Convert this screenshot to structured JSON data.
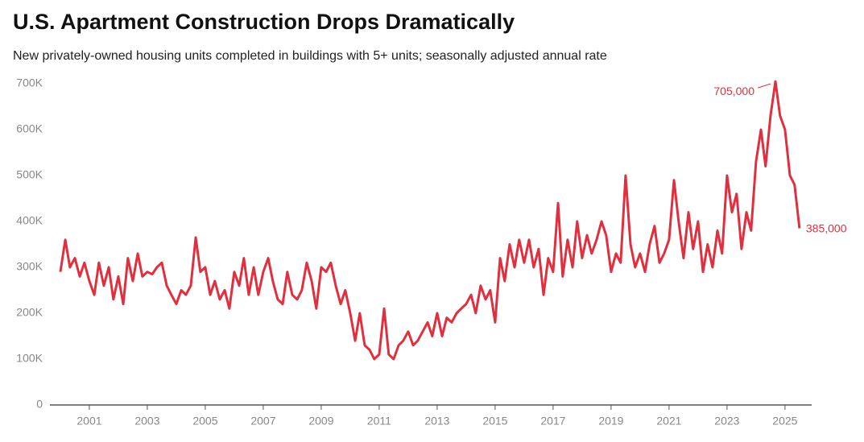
{
  "chart_data": {
    "type": "line",
    "title": "U.S. Apartment Construction Drops Dramatically",
    "subtitle": "New privately-owned housing units completed in buildings with 5+ units; seasonally adjusted annual rate",
    "x": [
      2000,
      2000.17,
      2000.33,
      2000.5,
      2000.67,
      2000.83,
      2001,
      2001.17,
      2001.33,
      2001.5,
      2001.67,
      2001.83,
      2002,
      2002.17,
      2002.33,
      2002.5,
      2002.67,
      2002.83,
      2003,
      2003.17,
      2003.33,
      2003.5,
      2003.67,
      2003.83,
      2004,
      2004.17,
      2004.33,
      2004.5,
      2004.67,
      2004.83,
      2005,
      2005.17,
      2005.33,
      2005.5,
      2005.67,
      2005.83,
      2006,
      2006.17,
      2006.33,
      2006.5,
      2006.67,
      2006.83,
      2007,
      2007.17,
      2007.33,
      2007.5,
      2007.67,
      2007.83,
      2008,
      2008.17,
      2008.33,
      2008.5,
      2008.67,
      2008.83,
      2009,
      2009.17,
      2009.33,
      2009.5,
      2009.67,
      2009.83,
      2010,
      2010.17,
      2010.33,
      2010.5,
      2010.67,
      2010.83,
      2011,
      2011.17,
      2011.33,
      2011.5,
      2011.67,
      2011.83,
      2012,
      2012.17,
      2012.33,
      2012.5,
      2012.67,
      2012.83,
      2013,
      2013.17,
      2013.33,
      2013.5,
      2013.67,
      2013.83,
      2014,
      2014.17,
      2014.33,
      2014.5,
      2014.67,
      2014.83,
      2015,
      2015.17,
      2015.33,
      2015.5,
      2015.67,
      2015.83,
      2016,
      2016.17,
      2016.33,
      2016.5,
      2016.67,
      2016.83,
      2017,
      2017.17,
      2017.33,
      2017.5,
      2017.67,
      2017.83,
      2018,
      2018.17,
      2018.33,
      2018.5,
      2018.67,
      2018.83,
      2019,
      2019.17,
      2019.33,
      2019.5,
      2019.67,
      2019.83,
      2020,
      2020.17,
      2020.33,
      2020.5,
      2020.67,
      2020.83,
      2021,
      2021.17,
      2021.33,
      2021.5,
      2021.67,
      2021.83,
      2022,
      2022.17,
      2022.33,
      2022.5,
      2022.67,
      2022.83,
      2023,
      2023.17,
      2023.33,
      2023.5,
      2023.67,
      2023.83,
      2024,
      2024.17,
      2024.33,
      2024.5,
      2024.67,
      2024.83,
      2025,
      2025.17,
      2025.33,
      2025.5
    ],
    "series": [
      {
        "color": "#e0303f",
        "values": [
          290,
          360,
          300,
          320,
          280,
          310,
          270,
          240,
          310,
          260,
          300,
          230,
          280,
          220,
          320,
          270,
          330,
          280,
          290,
          285,
          300,
          310,
          260,
          240,
          220,
          250,
          240,
          260,
          365,
          290,
          300,
          240,
          270,
          230,
          250,
          210,
          290,
          260,
          320,
          240,
          300,
          240,
          290,
          320,
          270,
          230,
          220,
          290,
          240,
          230,
          250,
          310,
          270,
          210,
          300,
          290,
          310,
          260,
          220,
          250,
          200,
          140,
          200,
          130,
          120,
          100,
          110,
          210,
          110,
          100,
          130,
          140,
          160,
          130,
          140,
          160,
          180,
          150,
          200,
          150,
          190,
          180,
          200,
          210,
          220,
          240,
          200,
          260,
          230,
          250,
          180,
          320,
          270,
          350,
          300,
          360,
          310,
          360,
          300,
          340,
          240,
          320,
          290,
          440,
          280,
          360,
          300,
          400,
          320,
          370,
          330,
          360,
          400,
          370,
          290,
          330,
          310,
          500,
          350,
          300,
          330,
          290,
          350,
          390,
          310,
          330,
          360,
          490,
          400,
          320,
          420,
          340,
          400,
          290,
          350,
          300,
          380,
          330,
          500,
          420,
          460,
          340,
          420,
          380,
          530,
          600,
          520,
          630,
          705,
          630,
          600,
          500,
          480,
          385
        ],
        "value_labels": [
          null,
          null,
          null,
          null,
          null,
          null,
          null,
          null,
          null,
          null,
          null,
          null,
          null,
          null,
          null,
          null,
          null,
          null,
          null,
          null,
          null,
          null,
          null,
          null,
          null,
          null,
          null,
          null,
          null,
          null,
          null,
          null,
          null,
          null,
          null,
          null,
          null,
          null,
          null,
          null,
          null,
          null,
          null,
          null,
          null,
          null,
          null,
          null,
          null,
          null,
          null,
          null,
          null,
          null,
          null,
          null,
          null,
          null,
          null,
          null,
          null,
          null,
          null,
          null,
          null,
          null,
          null,
          null,
          null,
          null,
          null,
          null,
          null,
          null,
          null,
          null,
          null,
          null,
          null,
          null,
          null,
          null,
          null,
          null,
          null,
          null,
          null,
          null,
          null,
          null,
          null,
          null,
          null,
          null,
          null,
          null,
          null,
          null,
          null,
          null,
          null,
          null,
          null,
          null,
          null,
          null,
          null,
          null,
          null,
          null,
          null,
          null,
          null,
          null,
          null,
          null,
          null,
          null,
          null,
          null,
          null,
          null,
          null,
          null,
          null,
          null,
          null,
          null,
          null,
          null,
          null,
          null,
          null,
          null,
          null,
          null,
          null,
          null,
          null,
          null,
          null,
          null,
          null,
          null,
          null,
          null,
          null,
          null,
          "705,000",
          null,
          null,
          null,
          null,
          "385,000"
        ]
      }
    ],
    "xlim": [
      1999.64,
      2025.92
    ],
    "xticks": [
      2001,
      2003,
      2005,
      2007,
      2009,
      2011,
      2013,
      2015,
      2017,
      2019,
      2021,
      2023,
      2025
    ],
    "ylim": [
      0,
      700
    ],
    "yticks": [
      0,
      {
        "value": 100,
        "label": "100K"
      },
      {
        "value": 200,
        "label": "200K"
      },
      {
        "value": 300,
        "label": "300K"
      },
      {
        "value": 400,
        "label": "400K"
      },
      {
        "value": 500,
        "label": "500K"
      },
      {
        "value": 600,
        "label": "600K"
      },
      {
        "value": 700,
        "label": "700K"
      }
    ],
    "grid": false
  }
}
